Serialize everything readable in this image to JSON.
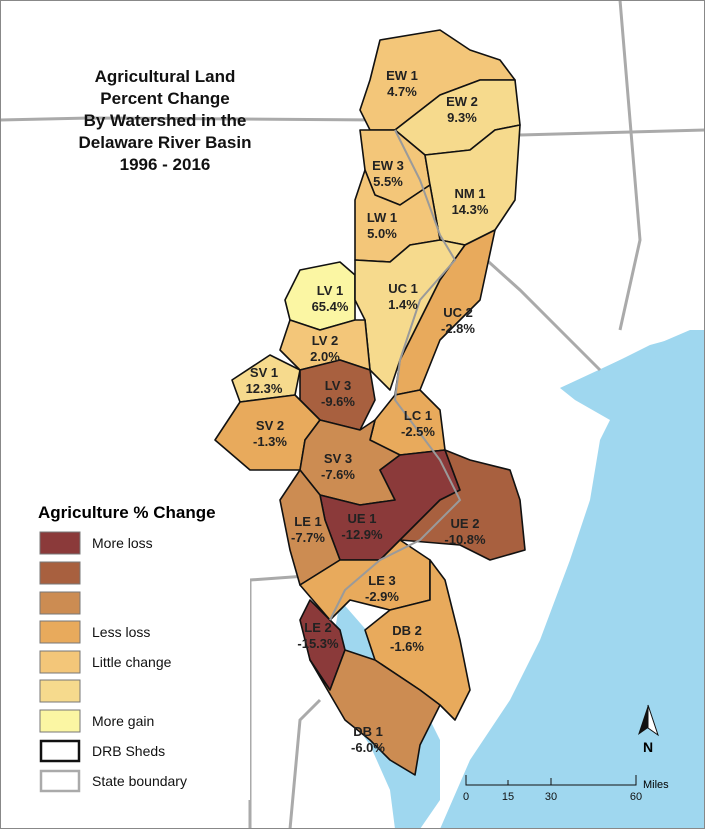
{
  "header": {
    "title_lines": [
      "Agricultural Land",
      "Percent Change",
      "By Watershed in the",
      "Delaware River Basin",
      "1996 - 2016"
    ]
  },
  "watersheds": [
    {
      "name": "EW 1",
      "change": "4.7%"
    },
    {
      "name": "EW 2",
      "change": "9.3%"
    },
    {
      "name": "EW 3",
      "change": "5.5%"
    },
    {
      "name": "NM 1",
      "change": "14.3%"
    },
    {
      "name": "LW 1",
      "change": "5.0%"
    },
    {
      "name": "LV 1",
      "change": "65.4%"
    },
    {
      "name": "UC 1",
      "change": "1.4%"
    },
    {
      "name": "UC 2",
      "change": "-2.8%"
    },
    {
      "name": "LV 2",
      "change": "2.0%"
    },
    {
      "name": "SV 1",
      "change": "12.3%"
    },
    {
      "name": "LV 3",
      "change": "-9.6%"
    },
    {
      "name": "SV 2",
      "change": "-1.3%"
    },
    {
      "name": "LC 1",
      "change": "-2.5%"
    },
    {
      "name": "SV 3",
      "change": "-7.6%"
    },
    {
      "name": "UE 1",
      "change": "-12.9%"
    },
    {
      "name": "UE 2",
      "change": "-10.8%"
    },
    {
      "name": "LE 1",
      "change": "-7.7%"
    },
    {
      "name": "LE 3",
      "change": "-2.9%"
    },
    {
      "name": "DB 2",
      "change": "-1.6%"
    },
    {
      "name": "LE 2",
      "change": "-15.3%"
    },
    {
      "name": "DB 1",
      "change": "-6.0%"
    }
  ],
  "legend": {
    "title": "Agriculture % Change",
    "items": [
      "More loss",
      "Less loss",
      "Little change",
      "More gain",
      "DRB Sheds",
      "State boundary"
    ]
  },
  "north_arrow": "N",
  "scale_bar": {
    "ticks": [
      "0",
      "15",
      "30",
      "60"
    ],
    "unit": "Miles"
  }
}
